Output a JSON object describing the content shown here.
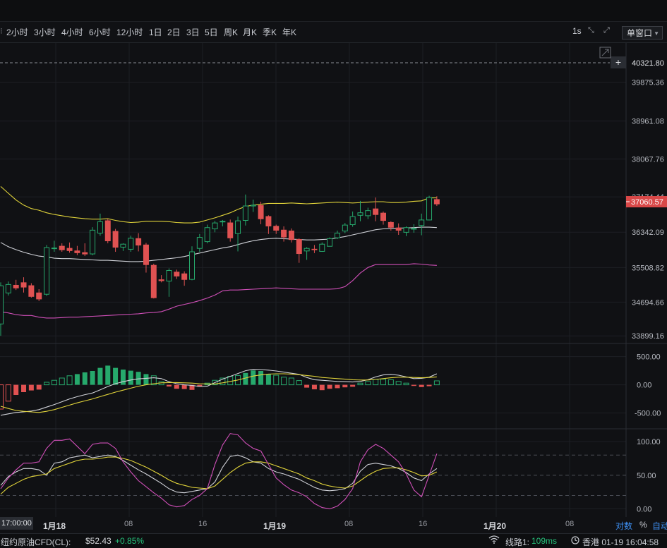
{
  "toolbar": {
    "timeframes": [
      "2小时",
      "3小时",
      "4小时",
      "6小时",
      "12小时",
      "1日",
      "2日",
      "3日",
      "5日",
      "周K",
      "月K",
      "季K",
      "年K"
    ],
    "interval_label": "1s",
    "window_mode": "单窗口"
  },
  "price_axis": {
    "labels": [
      "39875.36",
      "38961.08",
      "38067.76",
      "37174.44",
      "36342.09",
      "35508.82",
      "34694.66",
      "33899.16"
    ],
    "crosshair_price": "40321.80",
    "last_price": "37060.57"
  },
  "macd_axis": {
    "labels": [
      "500.00",
      "0.00",
      "-500.00"
    ]
  },
  "kdj_axis": {
    "labels": [
      "100.00",
      "50.00",
      "0.00"
    ]
  },
  "time_axis": {
    "labels": [
      {
        "text": "17:00:00"
      },
      {
        "text": "1月18"
      },
      {
        "text": "08"
      },
      {
        "text": "16"
      },
      {
        "text": "1月19"
      },
      {
        "text": "08"
      },
      {
        "text": "16"
      },
      {
        "text": "1月20"
      },
      {
        "text": "08"
      }
    ],
    "log_label": "对数",
    "percent_label": "%",
    "auto_label": "自动"
  },
  "status_bar": {
    "instrument": "纽约原油CFD(CL):",
    "price": "$52.43",
    "change": "+0.85%",
    "line_label": "线路1:",
    "latency": "109ms",
    "location_time": "香港 01-19 16:04:58"
  },
  "colors": {
    "up": "#26a96c",
    "down": "#e05252",
    "mid": "#d0d2d8",
    "upper": "#e0d33a",
    "lower": "#d04fb8"
  },
  "chart_data": {
    "type": "candlestick",
    "candles": [
      [
        34180,
        35080,
        33900,
        35160
      ],
      [
        34910,
        35110,
        34850,
        35180
      ],
      [
        35100,
        35020,
        34980,
        35220
      ],
      [
        35160,
        35040,
        34920,
        35280
      ],
      [
        35090,
        34820,
        34800,
        35140
      ],
      [
        34920,
        34760,
        34720,
        35000
      ],
      [
        34880,
        35980,
        34840,
        36040
      ],
      [
        35960,
        35970,
        35880,
        36140
      ],
      [
        36020,
        35920,
        35880,
        36080
      ],
      [
        35970,
        35900,
        35860,
        36100
      ],
      [
        35910,
        35850,
        35800,
        36020
      ],
      [
        35870,
        35820,
        35780,
        36080
      ],
      [
        35830,
        36390,
        35800,
        36460
      ],
      [
        36320,
        36590,
        36260,
        36780
      ],
      [
        36620,
        36130,
        36080,
        36660
      ],
      [
        36370,
        35980,
        35880,
        36420
      ],
      [
        35990,
        36060,
        35900,
        36080
      ],
      [
        35940,
        36200,
        35880,
        36260
      ],
      [
        36200,
        36030,
        35890,
        36320
      ],
      [
        36050,
        35570,
        35390,
        36090
      ],
      [
        35570,
        34790,
        34780,
        35600
      ],
      [
        35230,
        35190,
        35160,
        35330
      ],
      [
        35190,
        35440,
        34820,
        35490
      ],
      [
        35410,
        35300,
        35240,
        35460
      ],
      [
        35370,
        35220,
        35080,
        35420
      ],
      [
        35230,
        35880,
        35210,
        36010
      ],
      [
        35960,
        36220,
        35880,
        36300
      ],
      [
        36120,
        36450,
        36080,
        36520
      ],
      [
        36420,
        36560,
        36340,
        36610
      ],
      [
        36600,
        36600,
        36480,
        36630
      ],
      [
        36570,
        36200,
        36120,
        36640
      ],
      [
        36310,
        36610,
        35890,
        36710
      ],
      [
        36620,
        36960,
        36500,
        37230
      ],
      [
        36960,
        36980,
        36820,
        37110
      ],
      [
        36980,
        36650,
        36530,
        37060
      ],
      [
        36720,
        36480,
        36300,
        36740
      ],
      [
        36490,
        36380,
        36300,
        36520
      ],
      [
        36400,
        36220,
        36120,
        36480
      ],
      [
        36380,
        36160,
        36100,
        36430
      ],
      [
        36180,
        35830,
        35620,
        36200
      ],
      [
        35900,
        35960,
        35690,
        35990
      ],
      [
        35950,
        35920,
        35850,
        36040
      ],
      [
        35890,
        36060,
        35880,
        36100
      ],
      [
        36010,
        36190,
        36020,
        36220
      ],
      [
        36210,
        36320,
        36180,
        36380
      ],
      [
        36370,
        36510,
        36320,
        36560
      ],
      [
        36520,
        36710,
        36470,
        36830
      ],
      [
        36740,
        36800,
        36600,
        37080
      ],
      [
        36730,
        36850,
        36650,
        36920
      ],
      [
        36900,
        36750,
        36600,
        37160
      ],
      [
        36800,
        36610,
        36520,
        36830
      ],
      [
        36580,
        36450,
        36380,
        36600
      ],
      [
        36450,
        36380,
        36280,
        36550
      ],
      [
        36340,
        36450,
        36250,
        36480
      ],
      [
        36430,
        36430,
        36330,
        36530
      ],
      [
        36500,
        36630,
        36270,
        36780
      ],
      [
        36630,
        37160,
        36620,
        37200
      ],
      [
        37120,
        37000,
        36960,
        37190
      ]
    ],
    "boll_upper": [
      37420,
      37260,
      37100,
      36980,
      36900,
      36860,
      36800,
      36760,
      36730,
      36700,
      36680,
      36660,
      36650,
      36650,
      36660,
      36620,
      36590,
      36570,
      36580,
      36600,
      36600,
      36600,
      36590,
      36570,
      36560,
      36560,
      36580,
      36630,
      36680,
      36740,
      36800,
      36880,
      36950,
      36980,
      37000,
      37020,
      37020,
      37020,
      37030,
      37020,
      37010,
      37020,
      37030,
      37040,
      37050,
      37040,
      37030,
      37040,
      37050,
      37060,
      37060,
      37040,
      37040,
      37050,
      37070,
      37080,
      37150,
      37150
    ],
    "boll_mid": [
      36100,
      36000,
      35930,
      35870,
      35820,
      35780,
      35760,
      35730,
      35720,
      35720,
      35710,
      35700,
      35690,
      35680,
      35680,
      35670,
      35660,
      35650,
      35650,
      35660,
      35680,
      35700,
      35720,
      35740,
      35770,
      35810,
      35850,
      35890,
      35930,
      35970,
      36000,
      36050,
      36100,
      36140,
      36170,
      36190,
      36200,
      36190,
      36180,
      36170,
      36160,
      36160,
      36170,
      36180,
      36210,
      36240,
      36280,
      36320,
      36360,
      36400,
      36420,
      36430,
      36440,
      36440,
      36450,
      36460,
      36460,
      36450
    ],
    "boll_lower": [
      34470,
      34440,
      34400,
      34380,
      34380,
      34340,
      34320,
      34320,
      34330,
      34340,
      34340,
      34350,
      34360,
      34370,
      34380,
      34390,
      34400,
      34410,
      34420,
      34440,
      34450,
      34470,
      34530,
      34600,
      34640,
      34680,
      34730,
      34790,
      34860,
      34960,
      34980,
      34980,
      34990,
      35000,
      35010,
      35020,
      35030,
      35020,
      35010,
      35000,
      35000,
      35000,
      35000,
      35000,
      35010,
      35060,
      35200,
      35380,
      35510,
      35580,
      35580,
      35580,
      35580,
      35580,
      35600,
      35590,
      35570,
      35560
    ],
    "price_axis_range": [
      33720,
      40800
    ],
    "macd_hist": [
      -430,
      -290,
      -180,
      -130,
      -100,
      -85,
      45,
      80,
      120,
      160,
      190,
      220,
      245,
      300,
      340,
      300,
      270,
      250,
      230,
      190,
      160,
      55,
      -30,
      -70,
      -75,
      -90,
      -35,
      30,
      80,
      120,
      150,
      165,
      210,
      255,
      245,
      190,
      170,
      135,
      120,
      75,
      -50,
      -80,
      -95,
      -70,
      -60,
      -45,
      -35,
      30,
      60,
      95,
      100,
      90,
      60,
      30,
      -20,
      -40,
      -25,
      70
    ],
    "macd_dif": [
      -540,
      -515,
      -490,
      -480,
      -465,
      -440,
      -395,
      -350,
      -300,
      -250,
      -210,
      -175,
      -145,
      -90,
      -30,
      20,
      55,
      85,
      105,
      115,
      125,
      110,
      55,
      20,
      0,
      -10,
      -30,
      -25,
      40,
      100,
      150,
      200,
      250,
      275,
      270,
      260,
      245,
      225,
      205,
      185,
      130,
      90,
      80,
      70,
      60,
      55,
      50,
      60,
      90,
      140,
      175,
      185,
      170,
      140,
      110,
      115,
      135,
      195
    ],
    "macd_dea": [
      -380,
      -420,
      -455,
      -470,
      -480,
      -490,
      -470,
      -440,
      -400,
      -360,
      -320,
      -285,
      -250,
      -210,
      -170,
      -130,
      -95,
      -60,
      -25,
      0,
      20,
      35,
      40,
      40,
      35,
      30,
      20,
      15,
      15,
      35,
      60,
      85,
      120,
      155,
      175,
      190,
      195,
      195,
      190,
      180,
      165,
      150,
      130,
      120,
      110,
      100,
      90,
      85,
      85,
      95,
      110,
      125,
      135,
      135,
      130,
      125,
      130,
      140
    ],
    "macd_axis_range": [
      -780,
      720
    ],
    "kdj_k": [
      35,
      48,
      55,
      60,
      60,
      58,
      50,
      68,
      70,
      76,
      78,
      80,
      76,
      78,
      80,
      78,
      72,
      65,
      58,
      52,
      45,
      38,
      30,
      25,
      24,
      26,
      28,
      30,
      40,
      62,
      78,
      80,
      76,
      70,
      68,
      60,
      55,
      52,
      48,
      44,
      38,
      32,
      28,
      27,
      28,
      30,
      38,
      56,
      66,
      68,
      66,
      64,
      60,
      54,
      46,
      42,
      52,
      60
    ],
    "kdj_d": [
      22,
      32,
      38,
      44,
      48,
      50,
      52,
      60,
      64,
      68,
      72,
      74,
      74,
      75,
      77,
      77,
      75,
      72,
      67,
      62,
      56,
      50,
      43,
      38,
      35,
      32,
      31,
      30,
      34,
      44,
      54,
      62,
      68,
      70,
      70,
      68,
      64,
      60,
      56,
      52,
      46,
      42,
      37,
      34,
      32,
      31,
      34,
      42,
      50,
      56,
      60,
      61,
      61,
      58,
      54,
      49,
      50,
      55
    ],
    "kdj_j": [
      30,
      46,
      58,
      68,
      68,
      70,
      90,
      102,
      102,
      104,
      93,
      82,
      96,
      98,
      98,
      90,
      70,
      55,
      42,
      33,
      24,
      16,
      6,
      3,
      5,
      14,
      20,
      30,
      66,
      95,
      112,
      110,
      98,
      90,
      86,
      66,
      46,
      36,
      28,
      24,
      18,
      8,
      2,
      0,
      4,
      14,
      30,
      70,
      88,
      96,
      90,
      80,
      70,
      52,
      28,
      18,
      50,
      82
    ],
    "kdj_axis_range": [
      -12,
      118
    ]
  }
}
